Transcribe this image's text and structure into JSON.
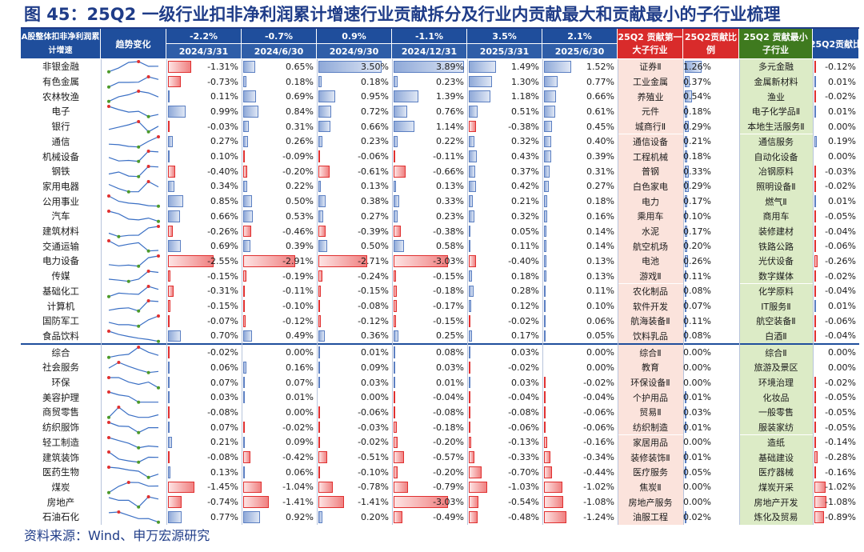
{
  "title": "图 45：25Q2 一级行业扣非净利润累计增速行业贡献拆分及行业内贡献最大和贡献最小的子行业梳理",
  "source": "资料来源：Wind、申万宏源研究",
  "header": {
    "col0": "A股整体扣非净利润累计增速",
    "col1": "趋势变化",
    "periods": [
      {
        "total": "-2.2%",
        "date": "2024/3/31"
      },
      {
        "total": "-0.7%",
        "date": "2024/6/30"
      },
      {
        "total": "0.9%",
        "date": "2024/9/30"
      },
      {
        "total": "-1.1%",
        "date": "2024/12/31"
      },
      {
        "total": "3.5%",
        "date": "2025/3/31"
      },
      {
        "total": "2.1%",
        "date": "2025/6/30"
      }
    ],
    "top_sub": "25Q2 贡献第一大子行业",
    "top_contrib": "25Q2贡献比例",
    "bottom_sub": "25Q2 贡献最小子行业",
    "bottom_contrib": "25Q2贡献比"
  },
  "colors": {
    "header_blue": "#1f4e9c",
    "header_red": "#d92b2b",
    "header_green": "#3f7a1f",
    "pos_bar": "#5b7fc2",
    "neg_bar": "#e03030",
    "top_bg": "#fbe3dc",
    "bottom_bg": "#dcebc6"
  },
  "rows": [
    {
      "name": "非银金融",
      "values": [
        -1.31,
        0.65,
        3.5,
        3.89,
        1.49,
        1.52
      ],
      "labels": [
        "-1.31%",
        "0.65%",
        "3.50%",
        "3.89%",
        "1.49%",
        "1.52%"
      ],
      "top_sub": "证券Ⅱ",
      "top_contrib": 1.26,
      "top_label": "1.26%",
      "bottom_sub": "多元金融",
      "bottom_contrib": -0.12,
      "bottom_label": "-0.12%"
    },
    {
      "name": "有色金属",
      "values": [
        -0.73,
        0.18,
        0.18,
        0.23,
        1.3,
        0.77
      ],
      "labels": [
        "-0.73%",
        "0.18%",
        "0.18%",
        "0.23%",
        "1.30%",
        "0.77%"
      ],
      "top_sub": "工业金属",
      "top_contrib": 0.37,
      "top_label": "0.37%",
      "bottom_sub": "金属新材料",
      "bottom_contrib": 0.01,
      "bottom_label": "0.01%"
    },
    {
      "name": "农林牧渔",
      "values": [
        0.11,
        0.69,
        0.95,
        1.39,
        1.18,
        0.66
      ],
      "labels": [
        "0.11%",
        "0.69%",
        "0.95%",
        "1.39%",
        "1.18%",
        "0.66%"
      ],
      "top_sub": "养殖业",
      "top_contrib": 0.54,
      "top_label": "0.54%",
      "bottom_sub": "渔业",
      "bottom_contrib": -0.02,
      "bottom_label": "-0.02%"
    },
    {
      "name": "电子",
      "values": [
        0.99,
        0.84,
        0.72,
        0.76,
        0.51,
        0.61
      ],
      "labels": [
        "0.99%",
        "0.84%",
        "0.72%",
        "0.76%",
        "0.51%",
        "0.61%"
      ],
      "top_sub": "元件",
      "top_contrib": 0.18,
      "top_label": "0.18%",
      "bottom_sub": "电子化学品Ⅱ",
      "bottom_contrib": 0.01,
      "bottom_label": "0.01%"
    },
    {
      "name": "银行",
      "values": [
        -0.03,
        0.31,
        0.66,
        1.14,
        -0.38,
        0.45
      ],
      "labels": [
        "-0.03%",
        "0.31%",
        "0.66%",
        "1.14%",
        "-0.38%",
        "0.45%"
      ],
      "top_sub": "城商行Ⅱ",
      "top_contrib": 0.29,
      "top_label": "0.29%",
      "bottom_sub": "本地生活服务Ⅱ",
      "bottom_contrib": 0.0,
      "bottom_label": "0.00%"
    },
    {
      "name": "通信",
      "values": [
        0.27,
        0.26,
        0.23,
        0.22,
        0.32,
        0.4
      ],
      "labels": [
        "0.27%",
        "0.26%",
        "0.23%",
        "0.22%",
        "0.32%",
        "0.40%"
      ],
      "top_sub": "通信设备",
      "top_contrib": 0.21,
      "top_label": "0.21%",
      "bottom_sub": "通信服务",
      "bottom_contrib": 0.19,
      "bottom_label": "0.19%"
    },
    {
      "name": "机械设备",
      "values": [
        0.1,
        -0.09,
        -0.06,
        -0.11,
        0.43,
        0.39
      ],
      "labels": [
        "0.10%",
        "-0.09%",
        "-0.06%",
        "-0.11%",
        "0.43%",
        "0.39%"
      ],
      "top_sub": "工程机械",
      "top_contrib": 0.18,
      "top_label": "0.18%",
      "bottom_sub": "自动化设备",
      "bottom_contrib": 0.0,
      "bottom_label": "0.00%"
    },
    {
      "name": "钢铁",
      "values": [
        -0.4,
        -0.2,
        -0.61,
        -0.66,
        0.37,
        0.31
      ],
      "labels": [
        "-0.40%",
        "-0.20%",
        "-0.61%",
        "-0.66%",
        "0.37%",
        "0.31%"
      ],
      "top_sub": "普钢",
      "top_contrib": 0.33,
      "top_label": "0.33%",
      "bottom_sub": "冶钢原料",
      "bottom_contrib": -0.03,
      "bottom_label": "-0.03%"
    },
    {
      "name": "家用电器",
      "values": [
        0.34,
        0.22,
        0.13,
        0.13,
        0.42,
        0.27
      ],
      "labels": [
        "0.34%",
        "0.22%",
        "0.13%",
        "0.13%",
        "0.42%",
        "0.27%"
      ],
      "top_sub": "白色家电",
      "top_contrib": 0.29,
      "top_label": "0.29%",
      "bottom_sub": "照明设备Ⅱ",
      "bottom_contrib": -0.02,
      "bottom_label": "-0.02%"
    },
    {
      "name": "公用事业",
      "values": [
        0.85,
        0.5,
        0.38,
        0.33,
        0.21,
        0.18
      ],
      "labels": [
        "0.85%",
        "0.50%",
        "0.38%",
        "0.33%",
        "0.21%",
        "0.18%"
      ],
      "top_sub": "电力",
      "top_contrib": 0.17,
      "top_label": "0.17%",
      "bottom_sub": "燃气Ⅱ",
      "bottom_contrib": 0.01,
      "bottom_label": "0.01%"
    },
    {
      "name": "汽车",
      "values": [
        0.66,
        0.53,
        0.27,
        0.23,
        0.32,
        0.16
      ],
      "labels": [
        "0.66%",
        "0.53%",
        "0.27%",
        "0.23%",
        "0.32%",
        "0.16%"
      ],
      "top_sub": "乘用车",
      "top_contrib": 0.1,
      "top_label": "0.10%",
      "bottom_sub": "商用车",
      "bottom_contrib": -0.05,
      "bottom_label": "-0.05%"
    },
    {
      "name": "建筑材料",
      "values": [
        -0.26,
        -0.46,
        -0.39,
        -0.38,
        0.05,
        0.14
      ],
      "labels": [
        "-0.26%",
        "-0.46%",
        "-0.39%",
        "-0.38%",
        "0.05%",
        "0.14%"
      ],
      "top_sub": "水泥",
      "top_contrib": 0.17,
      "top_label": "0.17%",
      "bottom_sub": "装修建材",
      "bottom_contrib": -0.04,
      "bottom_label": "-0.04%"
    },
    {
      "name": "交通运输",
      "values": [
        0.69,
        0.39,
        0.5,
        0.58,
        0.11,
        0.14
      ],
      "labels": [
        "0.69%",
        "0.39%",
        "0.50%",
        "0.58%",
        "0.11%",
        "0.14%"
      ],
      "top_sub": "航空机场",
      "top_contrib": 0.2,
      "top_label": "0.20%",
      "bottom_sub": "铁路公路",
      "bottom_contrib": -0.06,
      "bottom_label": "-0.06%"
    },
    {
      "name": "电力设备",
      "values": [
        -2.55,
        -2.91,
        -2.71,
        -3.03,
        -0.4,
        0.13
      ],
      "labels": [
        "-2.55%",
        "-2.91%",
        "-2.71%",
        "-3.03%",
        "-0.40%",
        "0.13%"
      ],
      "top_sub": "电池",
      "top_contrib": 0.26,
      "top_label": "0.26%",
      "bottom_sub": "光伏设备",
      "bottom_contrib": -0.26,
      "bottom_label": "-0.26%"
    },
    {
      "name": "传媒",
      "values": [
        -0.15,
        -0.19,
        -0.24,
        -0.15,
        0.18,
        0.13
      ],
      "labels": [
        "-0.15%",
        "-0.19%",
        "-0.24%",
        "-0.15%",
        "0.18%",
        "0.13%"
      ],
      "top_sub": "游戏Ⅱ",
      "top_contrib": 0.11,
      "top_label": "0.11%",
      "bottom_sub": "数字媒体",
      "bottom_contrib": -0.02,
      "bottom_label": "-0.02%"
    },
    {
      "name": "基础化工",
      "values": [
        -0.31,
        -0.11,
        -0.15,
        -0.18,
        0.28,
        0.11
      ],
      "labels": [
        "-0.31%",
        "-0.11%",
        "-0.15%",
        "-0.18%",
        "0.28%",
        "0.11%"
      ],
      "top_sub": "农化制品",
      "top_contrib": 0.08,
      "top_label": "0.08%",
      "bottom_sub": "化学原料",
      "bottom_contrib": -0.04,
      "bottom_label": "-0.04%"
    },
    {
      "name": "计算机",
      "values": [
        -0.15,
        -0.1,
        -0.08,
        -0.17,
        0.12,
        0.1
      ],
      "labels": [
        "-0.15%",
        "-0.10%",
        "-0.08%",
        "-0.17%",
        "0.12%",
        "0.10%"
      ],
      "top_sub": "软件开发",
      "top_contrib": 0.07,
      "top_label": "0.07%",
      "bottom_sub": "IT服务Ⅱ",
      "bottom_contrib": 0.01,
      "bottom_label": "0.01%"
    },
    {
      "name": "国防军工",
      "values": [
        -0.07,
        -0.12,
        -0.12,
        -0.15,
        -0.02,
        0.06
      ],
      "labels": [
        "-0.07%",
        "-0.12%",
        "-0.12%",
        "-0.15%",
        "-0.02%",
        "0.06%"
      ],
      "top_sub": "航海装备Ⅱ",
      "top_contrib": 0.11,
      "top_label": "0.11%",
      "bottom_sub": "航空装备Ⅱ",
      "bottom_contrib": -0.06,
      "bottom_label": "-0.06%"
    },
    {
      "name": "食品饮料",
      "values": [
        0.7,
        0.49,
        0.36,
        0.25,
        0.17,
        0.05
      ],
      "labels": [
        "0.70%",
        "0.49%",
        "0.36%",
        "0.25%",
        "0.17%",
        "0.05%"
      ],
      "top_sub": "饮料乳品",
      "top_contrib": 0.08,
      "top_label": "0.08%",
      "bottom_sub": "白酒Ⅱ",
      "bottom_contrib": -0.04,
      "bottom_label": "-0.04%"
    },
    {
      "name": "综合",
      "values": [
        -0.02,
        0.0,
        0.01,
        0.08,
        0.03,
        0.0
      ],
      "labels": [
        "-0.02%",
        "0.00%",
        "0.01%",
        "0.08%",
        "0.03%",
        "0.00%"
      ],
      "top_sub": "综合Ⅱ",
      "top_contrib": 0.0,
      "top_label": "0.00%",
      "bottom_sub": "综合Ⅱ",
      "bottom_contrib": 0.0,
      "bottom_label": "0.00%"
    },
    {
      "name": "社会服务",
      "values": [
        0.06,
        0.16,
        0.09,
        0.03,
        -0.02,
        0.0
      ],
      "labels": [
        "0.06%",
        "0.16%",
        "0.09%",
        "0.03%",
        "-0.02%",
        "0.00%"
      ],
      "top_sub": "教育",
      "top_contrib": 0.0,
      "top_label": "0.00%",
      "bottom_sub": "旅游及景区",
      "bottom_contrib": 0.0,
      "bottom_label": "0.00%"
    },
    {
      "name": "环保",
      "values": [
        0.07,
        0.07,
        0.03,
        0.01,
        0.03,
        -0.02
      ],
      "labels": [
        "0.07%",
        "0.07%",
        "0.03%",
        "0.01%",
        "0.03%",
        "-0.02%"
      ],
      "top_sub": "环保设备Ⅱ",
      "top_contrib": 0.0,
      "top_label": "0.00%",
      "bottom_sub": "环境治理",
      "bottom_contrib": -0.02,
      "bottom_label": "-0.02%"
    },
    {
      "name": "美容护理",
      "values": [
        0.03,
        0.01,
        0.0,
        -0.04,
        -0.04,
        -0.04
      ],
      "labels": [
        "0.03%",
        "0.01%",
        "0.00%",
        "-0.04%",
        "-0.04%",
        "-0.04%"
      ],
      "top_sub": "个护用品",
      "top_contrib": 0.01,
      "top_label": "0.01%",
      "bottom_sub": "化妆品",
      "bottom_contrib": -0.05,
      "bottom_label": "-0.05%"
    },
    {
      "name": "商贸零售",
      "values": [
        -0.08,
        0.0,
        -0.06,
        -0.08,
        -0.08,
        -0.06
      ],
      "labels": [
        "-0.08%",
        "0.00%",
        "-0.06%",
        "-0.08%",
        "-0.08%",
        "-0.06%"
      ],
      "top_sub": "贸易Ⅱ",
      "top_contrib": 0.03,
      "top_label": "0.03%",
      "bottom_sub": "一般零售",
      "bottom_contrib": -0.05,
      "bottom_label": "-0.05%"
    },
    {
      "name": "纺织服饰",
      "values": [
        0.07,
        -0.02,
        -0.03,
        -0.18,
        -0.06,
        -0.06
      ],
      "labels": [
        "0.07%",
        "-0.02%",
        "-0.03%",
        "-0.18%",
        "-0.06%",
        "-0.06%"
      ],
      "top_sub": "纺织制造",
      "top_contrib": 0.01,
      "top_label": "0.01%",
      "bottom_sub": "服装家纺",
      "bottom_contrib": -0.05,
      "bottom_label": "-0.05%"
    },
    {
      "name": "轻工制造",
      "values": [
        0.21,
        0.09,
        -0.02,
        -0.2,
        -0.13,
        -0.16
      ],
      "labels": [
        "0.21%",
        "0.09%",
        "-0.02%",
        "-0.20%",
        "-0.13%",
        "-0.16%"
      ],
      "top_sub": "家居用品",
      "top_contrib": 0.0,
      "top_label": "0.00%",
      "bottom_sub": "造纸",
      "bottom_contrib": -0.14,
      "bottom_label": "-0.14%"
    },
    {
      "name": "建筑装饰",
      "values": [
        -0.08,
        -0.42,
        -0.51,
        -0.57,
        -0.33,
        -0.34
      ],
      "labels": [
        "-0.08%",
        "-0.42%",
        "-0.51%",
        "-0.57%",
        "-0.33%",
        "-0.34%"
      ],
      "top_sub": "装修装饰Ⅱ",
      "top_contrib": 0.01,
      "top_label": "0.01%",
      "bottom_sub": "基础建设",
      "bottom_contrib": -0.28,
      "bottom_label": "-0.28%"
    },
    {
      "name": "医药生物",
      "values": [
        0.13,
        0.06,
        -0.1,
        -0.2,
        -0.7,
        -0.44
      ],
      "labels": [
        "0.13%",
        "0.06%",
        "-0.10%",
        "-0.20%",
        "-0.70%",
        "-0.44%"
      ],
      "top_sub": "医疗服务",
      "top_contrib": 0.05,
      "top_label": "0.05%",
      "bottom_sub": "医疗器械",
      "bottom_contrib": -0.16,
      "bottom_label": "-0.16%"
    },
    {
      "name": "煤炭",
      "values": [
        -1.45,
        -1.04,
        -0.78,
        -0.79,
        -1.03,
        -1.02
      ],
      "labels": [
        "-1.45%",
        "-1.04%",
        "-0.78%",
        "-0.79%",
        "-1.03%",
        "-1.02%"
      ],
      "top_sub": "焦炭Ⅱ",
      "top_contrib": 0.0,
      "top_label": "0.00%",
      "bottom_sub": "煤炭开采",
      "bottom_contrib": -1.02,
      "bottom_label": "-1.02%"
    },
    {
      "name": "房地产",
      "values": [
        -0.74,
        -1.41,
        -1.41,
        -3.03,
        -0.54,
        -1.08
      ],
      "labels": [
        "-0.74%",
        "-1.41%",
        "-1.41%",
        "-3.03%",
        "-0.54%",
        "-1.08%"
      ],
      "top_sub": "房地产服务",
      "top_contrib": 0.0,
      "top_label": "0.00%",
      "bottom_sub": "房地产开发",
      "bottom_contrib": -1.08,
      "bottom_label": "-1.08%"
    },
    {
      "name": "石油石化",
      "values": [
        0.77,
        0.92,
        0.2,
        -0.49,
        -0.48,
        -1.24
      ],
      "labels": [
        "0.77%",
        "0.92%",
        "0.20%",
        "-0.49%",
        "-0.48%",
        "-1.24%"
      ],
      "top_sub": "油服工程",
      "top_contrib": 0.02,
      "top_label": "0.02%",
      "bottom_sub": "炼化及贸易",
      "bottom_contrib": -0.89,
      "bottom_label": "-0.89%"
    }
  ]
}
